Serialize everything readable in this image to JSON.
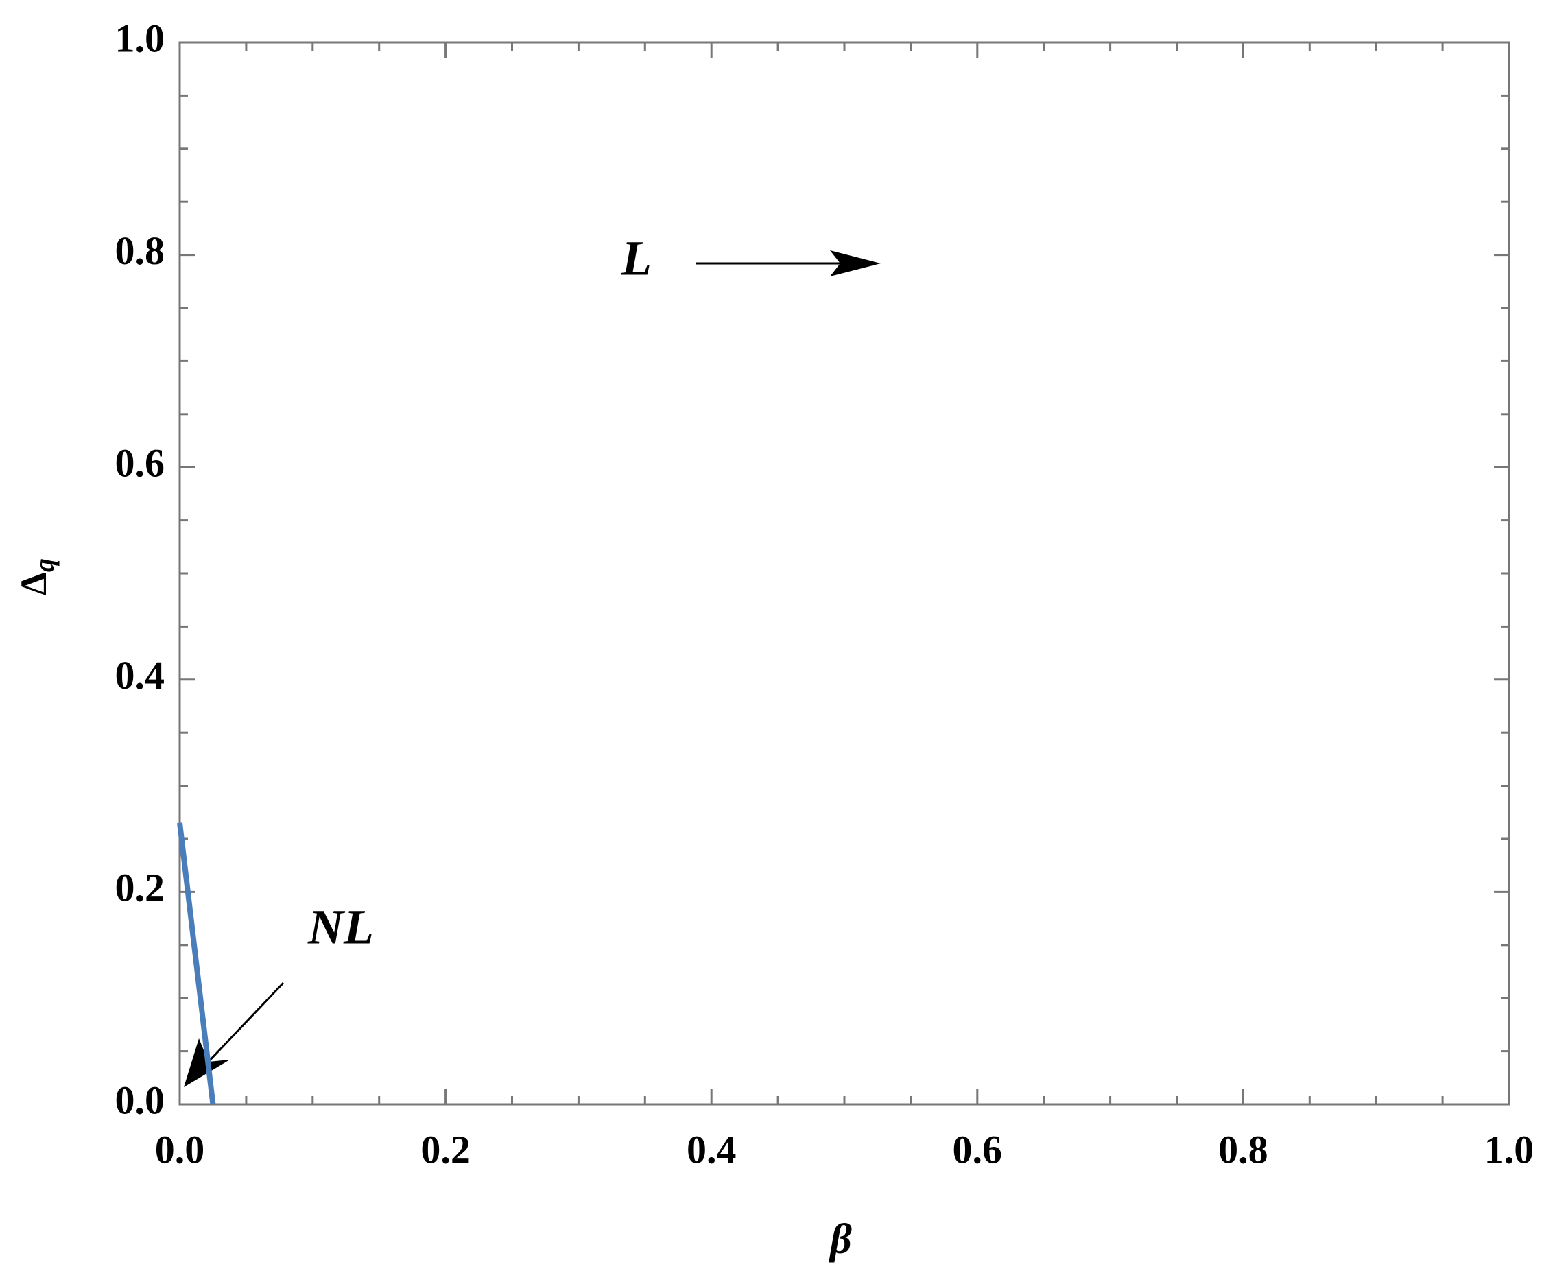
{
  "chart_data": {
    "type": "line",
    "xlabel": "β",
    "ylabel": "Δ",
    "ylabel_subscript": "q",
    "x": [
      0,
      0.025
    ],
    "series": [
      {
        "color": "#4a7ebb",
        "values": [
          0.265,
          0
        ]
      }
    ],
    "xlim": [
      0,
      1
    ],
    "ylim": [
      0,
      1
    ],
    "xticks": [
      {
        "value": 0,
        "label": "0.0"
      },
      0.2,
      0.4,
      0.6,
      0.8,
      {
        "value": 1,
        "label": "1.0"
      }
    ],
    "yticks": [
      {
        "value": 0,
        "label": "0.0"
      },
      0.2,
      0.4,
      0.6,
      0.8,
      {
        "value": 1,
        "label": "1.0"
      }
    ],
    "xminor_ticks": [
      0.05,
      0.1,
      0.15,
      0.25,
      0.3,
      0.35,
      0.45,
      0.5,
      0.55,
      0.65,
      0.7,
      0.75,
      0.85,
      0.9,
      0.95
    ],
    "yminor_ticks": [
      0.05,
      0.1,
      0.15,
      0.25,
      0.3,
      0.35,
      0.45,
      0.5,
      0.55,
      0.65,
      0.7,
      0.75,
      0.85,
      0.9,
      0.95
    ],
    "annotations": [
      "L",
      "NL"
    ]
  }
}
